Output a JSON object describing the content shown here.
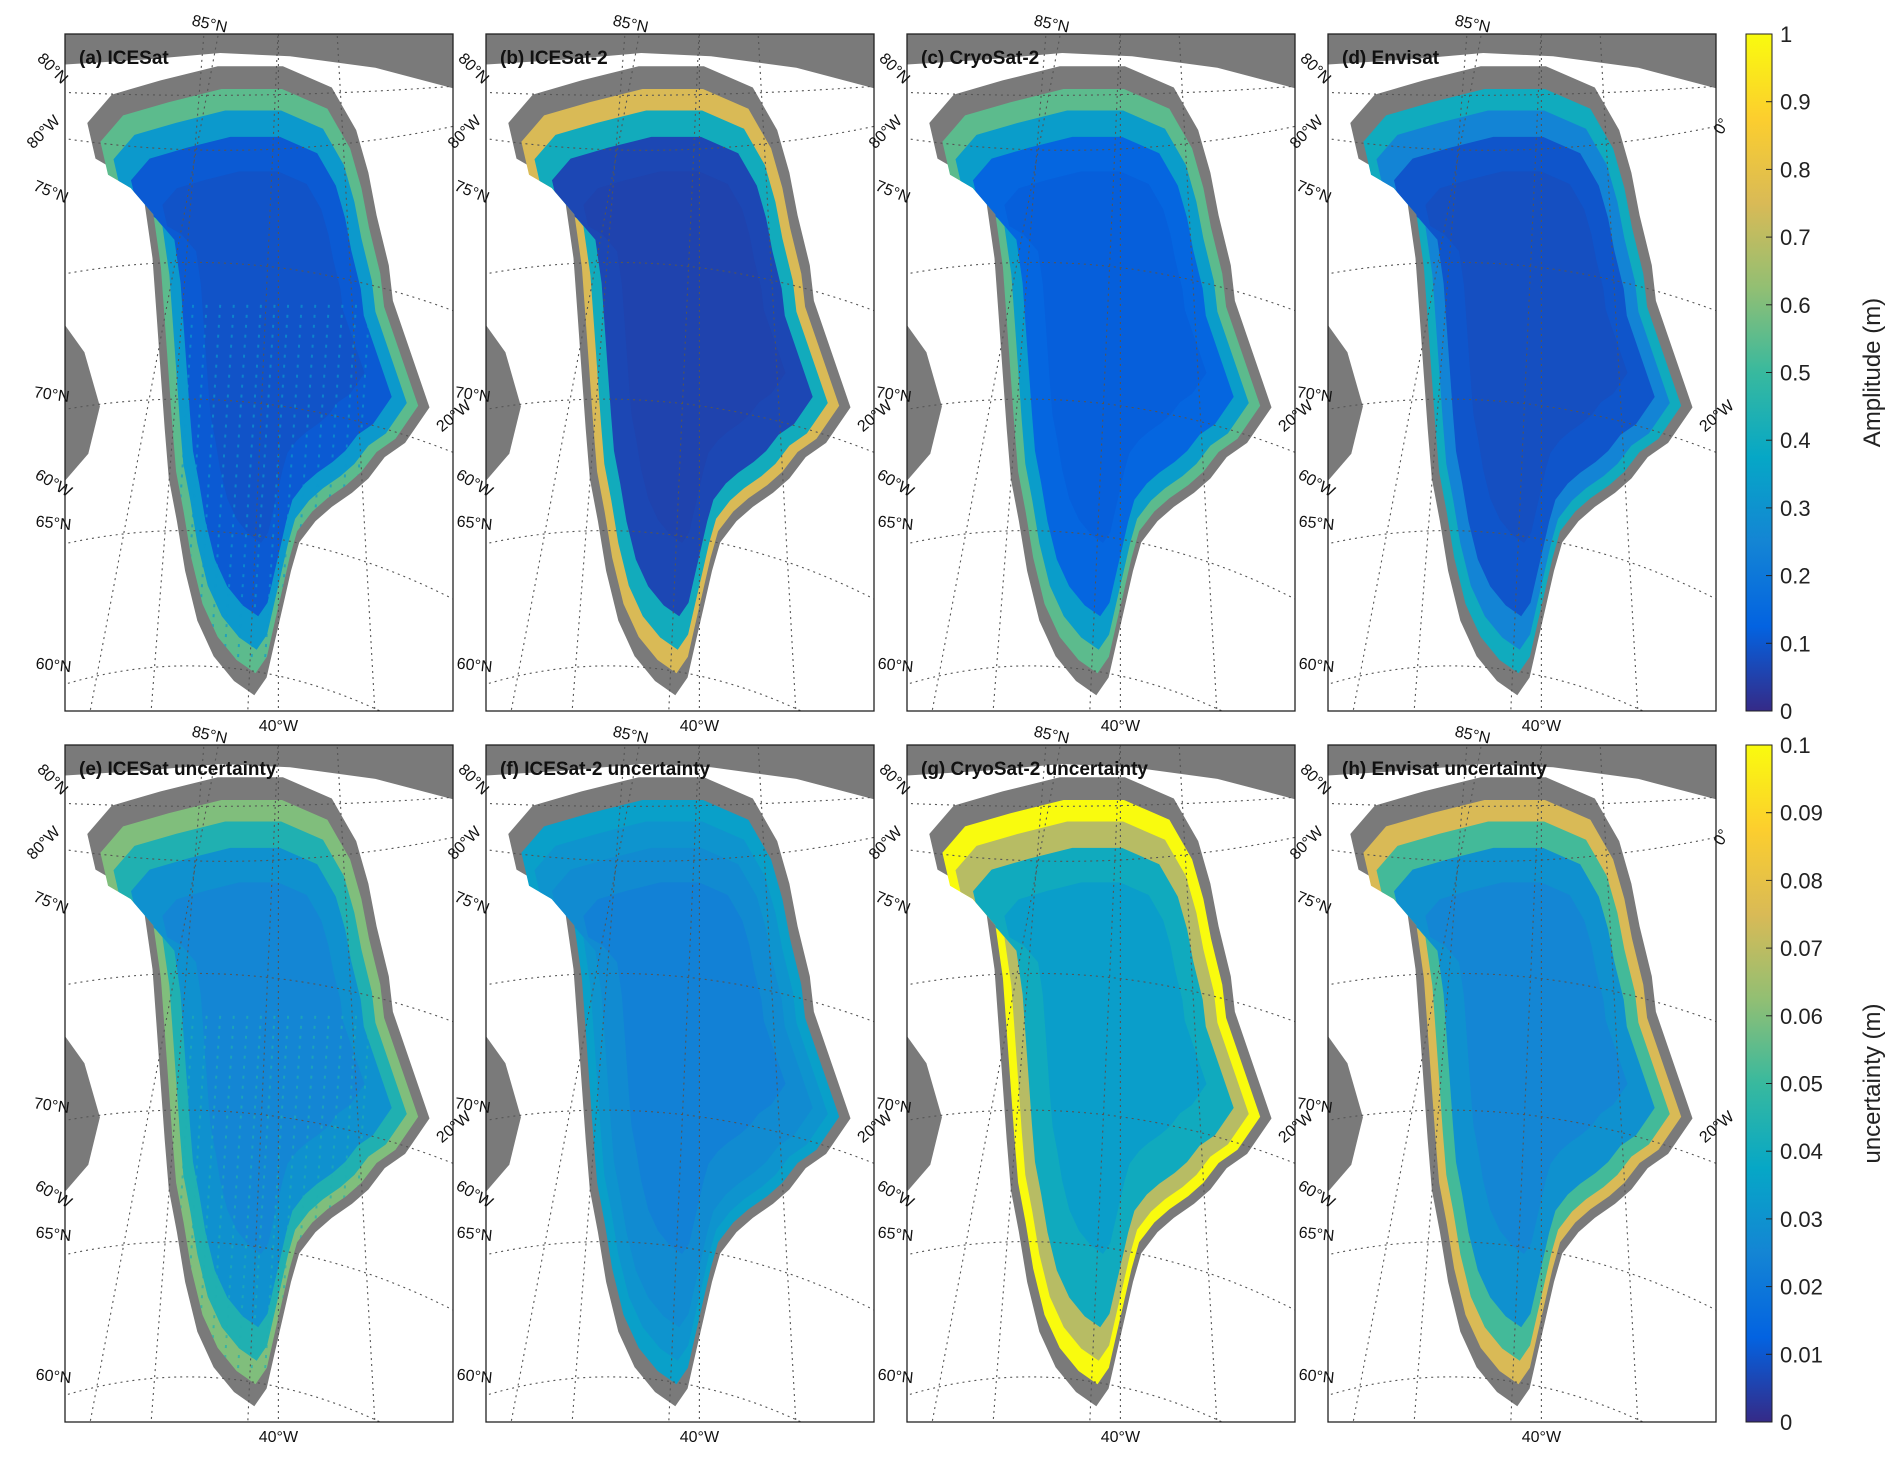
{
  "panels": [
    {
      "id": "a",
      "title": "(a) ICESat",
      "mode": "amp",
      "base": 0.1,
      "edge": 0.55,
      "tracks": true
    },
    {
      "id": "b",
      "title": "(b) ICESat-2",
      "mode": "amp",
      "base": 0.06,
      "edge": 0.75,
      "tracks": false
    },
    {
      "id": "c",
      "title": "(c) CryoSat-2",
      "mode": "amp",
      "base": 0.13,
      "edge": 0.55,
      "tracks": false
    },
    {
      "id": "d",
      "title": "(d) Envisat",
      "mode": "amp",
      "base": 0.09,
      "edge": 0.4,
      "tracks": false
    },
    {
      "id": "e",
      "title": "(e) ICESat uncertainty",
      "mode": "unc",
      "base": 0.028,
      "edge": 0.06,
      "tracks": true
    },
    {
      "id": "f",
      "title": "(f) ICESat-2 uncertainty",
      "mode": "unc",
      "base": 0.026,
      "edge": 0.035,
      "tracks": false
    },
    {
      "id": "g",
      "title": "(g) CryoSat-2 uncertainty",
      "mode": "unc",
      "base": 0.038,
      "edge": 0.1,
      "tracks": false
    },
    {
      "id": "h",
      "title": "(h) Envisat uncertainty",
      "mode": "unc",
      "base": 0.028,
      "edge": 0.075,
      "tracks": false
    }
  ],
  "graticule_labels": {
    "lat": [
      "85°N",
      "80°N",
      "75°N",
      "70°N",
      "65°N",
      "60°N"
    ],
    "lon": [
      "80°W",
      "60°W",
      "40°W",
      "20°W",
      "0°"
    ]
  },
  "colorbars": [
    {
      "label": "Amplitude (m)",
      "ticks": [
        "0",
        "0.1",
        "0.2",
        "0.3",
        "0.4",
        "0.5",
        "0.6",
        "0.7",
        "0.8",
        "0.9",
        "1"
      ]
    },
    {
      "label": "uncertainty (m)",
      "ticks": [
        "0",
        "0.01",
        "0.02",
        "0.03",
        "0.04",
        "0.05",
        "0.06",
        "0.07",
        "0.08",
        "0.09",
        "0.1"
      ]
    }
  ],
  "colors": {
    "land": "#7a7a7a",
    "ocean": "#ffffff",
    "graticule": "#555555",
    "parula": [
      "#352a87",
      "#0363e1",
      "#1485d4",
      "#06a7c6",
      "#38b99e",
      "#92bf73",
      "#d9ba56",
      "#fcce2e",
      "#f9fb0e"
    ]
  }
}
